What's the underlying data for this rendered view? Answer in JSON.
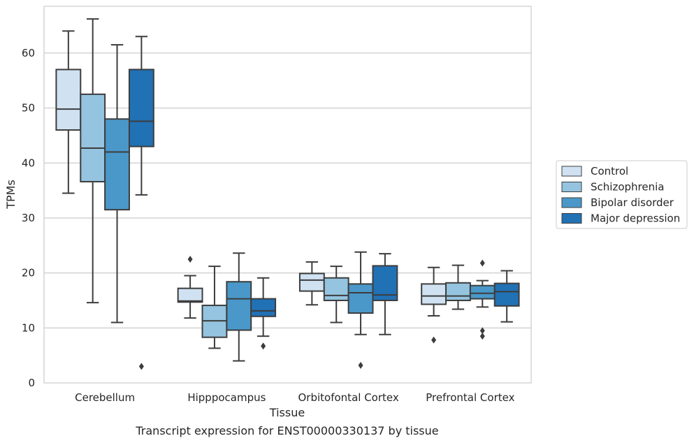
{
  "chart_data": {
    "type": "box",
    "caption": "Transcript expression for ENST00000330137 by tissue",
    "xlabel": "Tissue",
    "ylabel": "TPMs",
    "ylim": [
      0,
      68.5
    ],
    "yticks": [
      0,
      10,
      20,
      30,
      40,
      50,
      60
    ],
    "grid": "horizontal",
    "legend_position": "right",
    "categories": [
      "Cerebellum",
      "Hipppocampus",
      "Orbitofontal Cortex",
      "Prefrontal Cortex"
    ],
    "series": [
      {
        "name": "Control",
        "color": "#d0e1f2",
        "boxes": [
          {
            "whisker_low": 34.5,
            "q1": 46.0,
            "median": 49.8,
            "q3": 57.0,
            "whisker_high": 64.0,
            "outliers": []
          },
          {
            "whisker_low": 11.8,
            "q1": 14.7,
            "median": 14.9,
            "q3": 17.2,
            "whisker_high": 19.5,
            "outliers": [
              22.5
            ]
          },
          {
            "whisker_low": 14.2,
            "q1": 16.7,
            "median": 18.7,
            "q3": 19.9,
            "whisker_high": 22.0,
            "outliers": []
          },
          {
            "whisker_low": 12.2,
            "q1": 14.3,
            "median": 15.8,
            "q3": 18.0,
            "whisker_high": 21.0,
            "outliers": [
              7.8
            ]
          }
        ]
      },
      {
        "name": "Schizophrenia",
        "color": "#94c4df",
        "boxes": [
          {
            "whisker_low": 14.6,
            "q1": 36.6,
            "median": 42.7,
            "q3": 52.5,
            "whisker_high": 66.2,
            "outliers": []
          },
          {
            "whisker_low": 6.3,
            "q1": 8.3,
            "median": 11.3,
            "q3": 14.1,
            "whisker_high": 21.2,
            "outliers": []
          },
          {
            "whisker_low": 11.0,
            "q1": 15.0,
            "median": 15.9,
            "q3": 19.1,
            "whisker_high": 21.2,
            "outliers": []
          },
          {
            "whisker_low": 13.4,
            "q1": 15.0,
            "median": 15.8,
            "q3": 18.2,
            "whisker_high": 21.4,
            "outliers": []
          }
        ]
      },
      {
        "name": "Bipolar disorder",
        "color": "#4a98c9",
        "boxes": [
          {
            "whisker_low": 11.0,
            "q1": 31.5,
            "median": 42.0,
            "q3": 48.0,
            "whisker_high": 61.5,
            "outliers": []
          },
          {
            "whisker_low": 4.0,
            "q1": 9.6,
            "median": 15.3,
            "q3": 18.4,
            "whisker_high": 23.6,
            "outliers": []
          },
          {
            "whisker_low": 8.8,
            "q1": 12.7,
            "median": 16.4,
            "q3": 18.0,
            "whisker_high": 23.8,
            "outliers": [
              3.2
            ]
          },
          {
            "whisker_low": 13.8,
            "q1": 15.3,
            "median": 16.3,
            "q3": 17.7,
            "whisker_high": 18.6,
            "outliers": [
              21.8,
              9.5,
              8.5
            ]
          }
        ]
      },
      {
        "name": "Major depression",
        "color": "#2171b5",
        "boxes": [
          {
            "whisker_low": 34.2,
            "q1": 43.0,
            "median": 47.6,
            "q3": 57.0,
            "whisker_high": 63.0,
            "outliers": [
              3.0
            ]
          },
          {
            "whisker_low": 8.5,
            "q1": 12.1,
            "median": 13.1,
            "q3": 15.3,
            "whisker_high": 19.1,
            "outliers": [
              6.7
            ]
          },
          {
            "whisker_low": 8.8,
            "q1": 15.0,
            "median": 16.0,
            "q3": 21.3,
            "whisker_high": 23.5,
            "outliers": []
          },
          {
            "whisker_low": 11.1,
            "q1": 14.0,
            "median": 16.6,
            "q3": 18.1,
            "whisker_high": 20.4,
            "outliers": []
          }
        ]
      }
    ]
  }
}
